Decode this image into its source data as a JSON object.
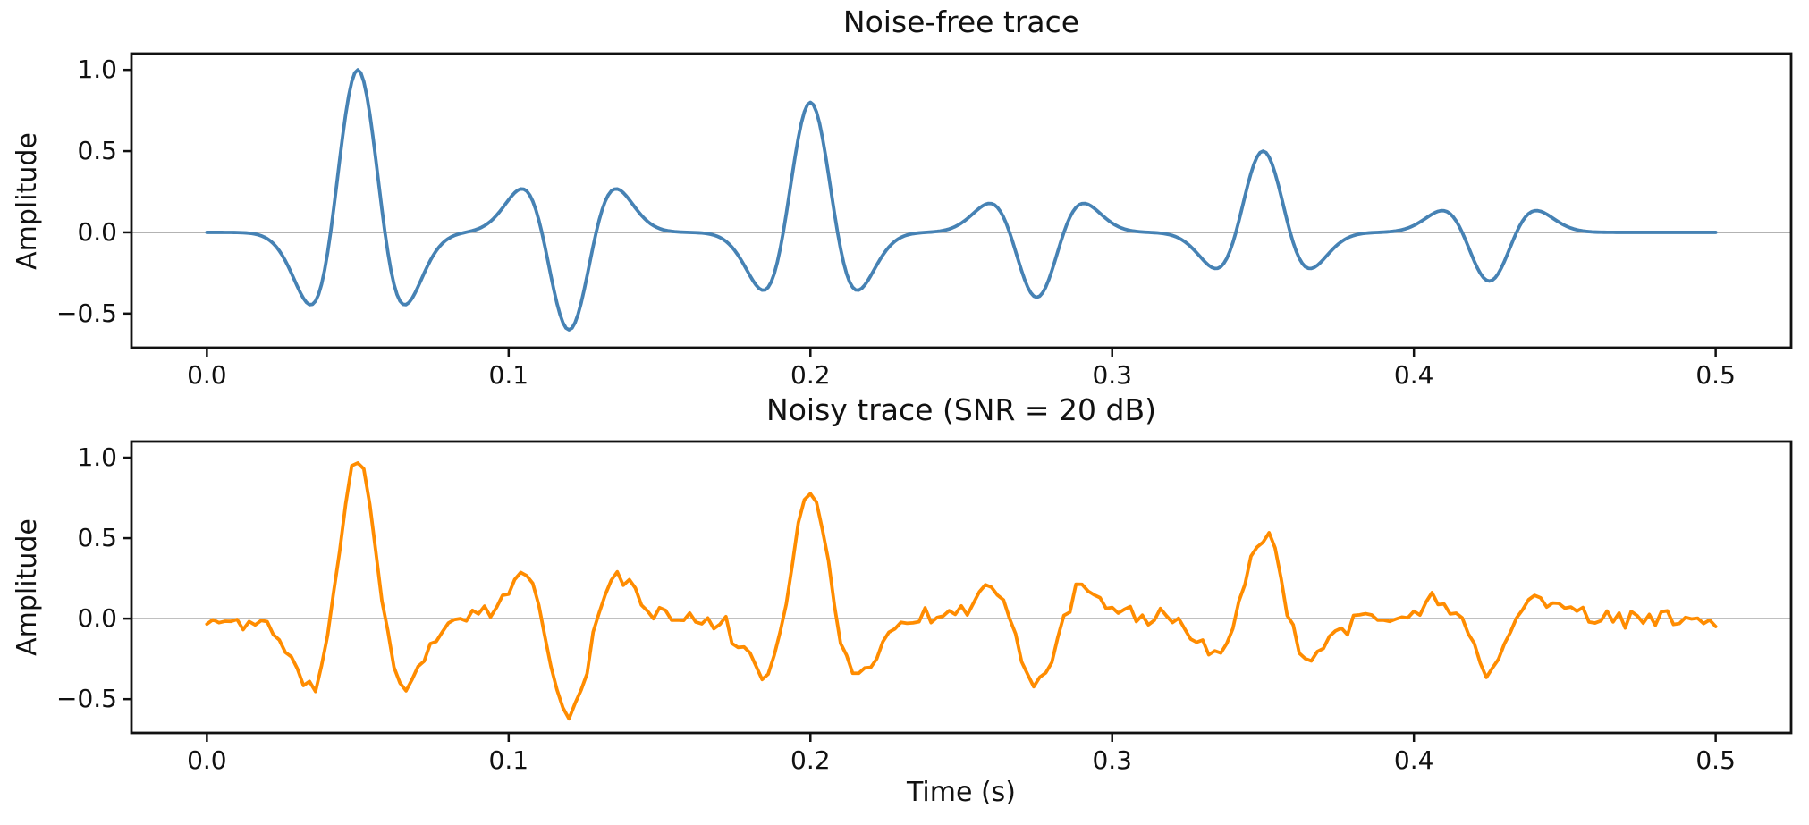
{
  "figure": {
    "background_color": "#ffffff",
    "text_color": "#111111",
    "spine_color": "#111111"
  },
  "chart_data": [
    {
      "type": "line",
      "title": "Noise-free trace",
      "xlabel": "",
      "ylabel": "Amplitude",
      "color": "#4682b4",
      "line_width": 3.8,
      "zero_line_color": "#9a9a9a",
      "xlim": [
        -0.025,
        0.525
      ],
      "ylim": [
        -0.71,
        1.1
      ],
      "x_ticks": [
        0.0,
        0.1,
        0.2,
        0.3,
        0.4,
        0.5
      ],
      "y_ticks": [
        1.0,
        0.5,
        0.0,
        -0.5
      ],
      "grid": false,
      "legend": null,
      "signal_model": {
        "wavelet": "ricker",
        "dominant_frequency_hz": 25,
        "events": [
          {
            "time_s": 0.05,
            "amplitude": 1.0
          },
          {
            "time_s": 0.12,
            "amplitude": -0.6
          },
          {
            "time_s": 0.2,
            "amplitude": 0.8
          },
          {
            "time_s": 0.275,
            "amplitude": -0.4
          },
          {
            "time_s": 0.35,
            "amplitude": 0.5
          },
          {
            "time_s": 0.425,
            "amplitude": -0.3
          }
        ],
        "t_start_s": 0.0,
        "t_end_s": 0.5,
        "dt_s": 0.001
      },
      "noise": null
    },
    {
      "type": "line",
      "title": "Noisy trace (SNR = 20 dB)",
      "xlabel": "Time (s)",
      "ylabel": "Amplitude",
      "color": "#ff8c00",
      "line_width": 3.8,
      "zero_line_color": "#9a9a9a",
      "xlim": [
        -0.025,
        0.525
      ],
      "ylim": [
        -0.71,
        1.1
      ],
      "x_ticks": [
        0.0,
        0.1,
        0.2,
        0.3,
        0.4,
        0.5
      ],
      "y_ticks": [
        1.0,
        0.5,
        0.0,
        -0.5
      ],
      "grid": false,
      "legend": null,
      "signal_model": {
        "wavelet": "ricker",
        "dominant_frequency_hz": 25,
        "events": [
          {
            "time_s": 0.05,
            "amplitude": 1.0
          },
          {
            "time_s": 0.12,
            "amplitude": -0.6
          },
          {
            "time_s": 0.2,
            "amplitude": 0.8
          },
          {
            "time_s": 0.275,
            "amplitude": -0.4
          },
          {
            "time_s": 0.35,
            "amplitude": 0.5
          },
          {
            "time_s": 0.425,
            "amplitude": -0.3
          }
        ],
        "t_start_s": 0.0,
        "t_end_s": 0.5,
        "dt_s": 0.002
      },
      "noise": {
        "snr_db": 20,
        "sigma": 0.03,
        "seed": 11
      }
    }
  ]
}
